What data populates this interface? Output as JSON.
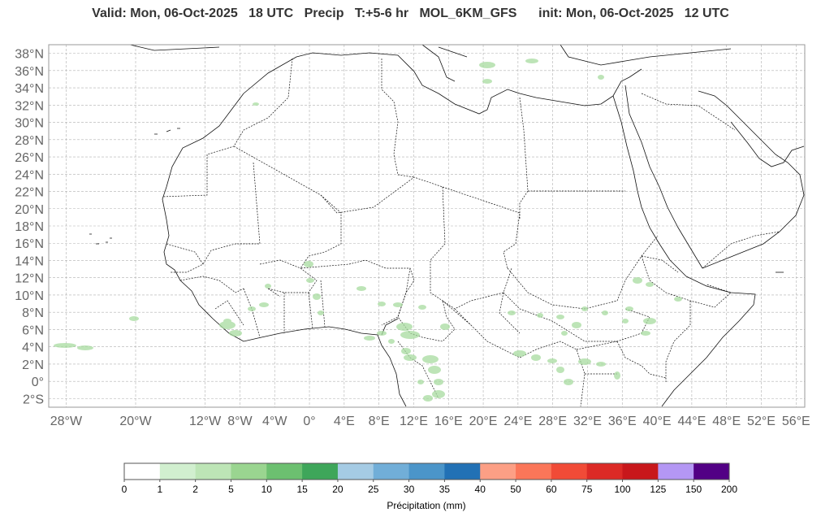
{
  "title": {
    "valid": "Valid: Mon, 06-Oct-2025",
    "valid_hour": "18 UTC",
    "field": "Precip",
    "step": "T:+5-6 hr",
    "model": "MOL_6KM_GFS",
    "init": "init: Mon, 06-Oct-2025",
    "init_hour": "12 UTC"
  },
  "map": {
    "lon_range": [
      -30,
      57
    ],
    "lat_range": [
      -3,
      39
    ],
    "lat_ticks": [
      "38°N",
      "36°N",
      "34°N",
      "32°N",
      "30°N",
      "28°N",
      "26°N",
      "24°N",
      "22°N",
      "20°N",
      "18°N",
      "16°N",
      "14°N",
      "12°N",
      "10°N",
      "8°N",
      "6°N",
      "4°N",
      "2°N",
      "0°",
      "2°S"
    ],
    "lat_values": [
      38,
      36,
      34,
      32,
      30,
      28,
      26,
      24,
      22,
      20,
      18,
      16,
      14,
      12,
      10,
      8,
      6,
      4,
      2,
      0,
      -2
    ],
    "lon_ticks": [
      "28°W",
      "20°W",
      "12°W",
      "8°W",
      "4°W",
      "0°",
      "4°E",
      "8°E",
      "12°E",
      "16°E",
      "20°E",
      "24°E",
      "28°E",
      "32°E",
      "36°E",
      "40°E",
      "44°E",
      "48°E",
      "52°E",
      "56°E"
    ],
    "lon_values": [
      -28,
      -20,
      -12,
      -8,
      -4,
      0,
      4,
      8,
      12,
      16,
      20,
      24,
      28,
      32,
      36,
      40,
      44,
      48,
      52,
      56
    ],
    "grid_color": "#b0b0b0",
    "coast_color": "#111111"
  },
  "colorbar": {
    "labels": [
      "0",
      "1",
      "2",
      "5",
      "10",
      "15",
      "20",
      "25",
      "30",
      "35",
      "40",
      "50",
      "60",
      "75",
      "100",
      "125",
      "150",
      "200"
    ],
    "colors": [
      "#ffffff",
      "#d1efcf",
      "#bde5b6",
      "#9ad590",
      "#6cc070",
      "#3ea65a",
      "#a5cbe4",
      "#71aed8",
      "#4b95c9",
      "#2271b5",
      "#fc9f85",
      "#fb7659",
      "#f14b37",
      "#dc2a26",
      "#c8171b",
      "#b497f4",
      "#520085"
    ],
    "title": "Précipitation (mm)"
  }
}
